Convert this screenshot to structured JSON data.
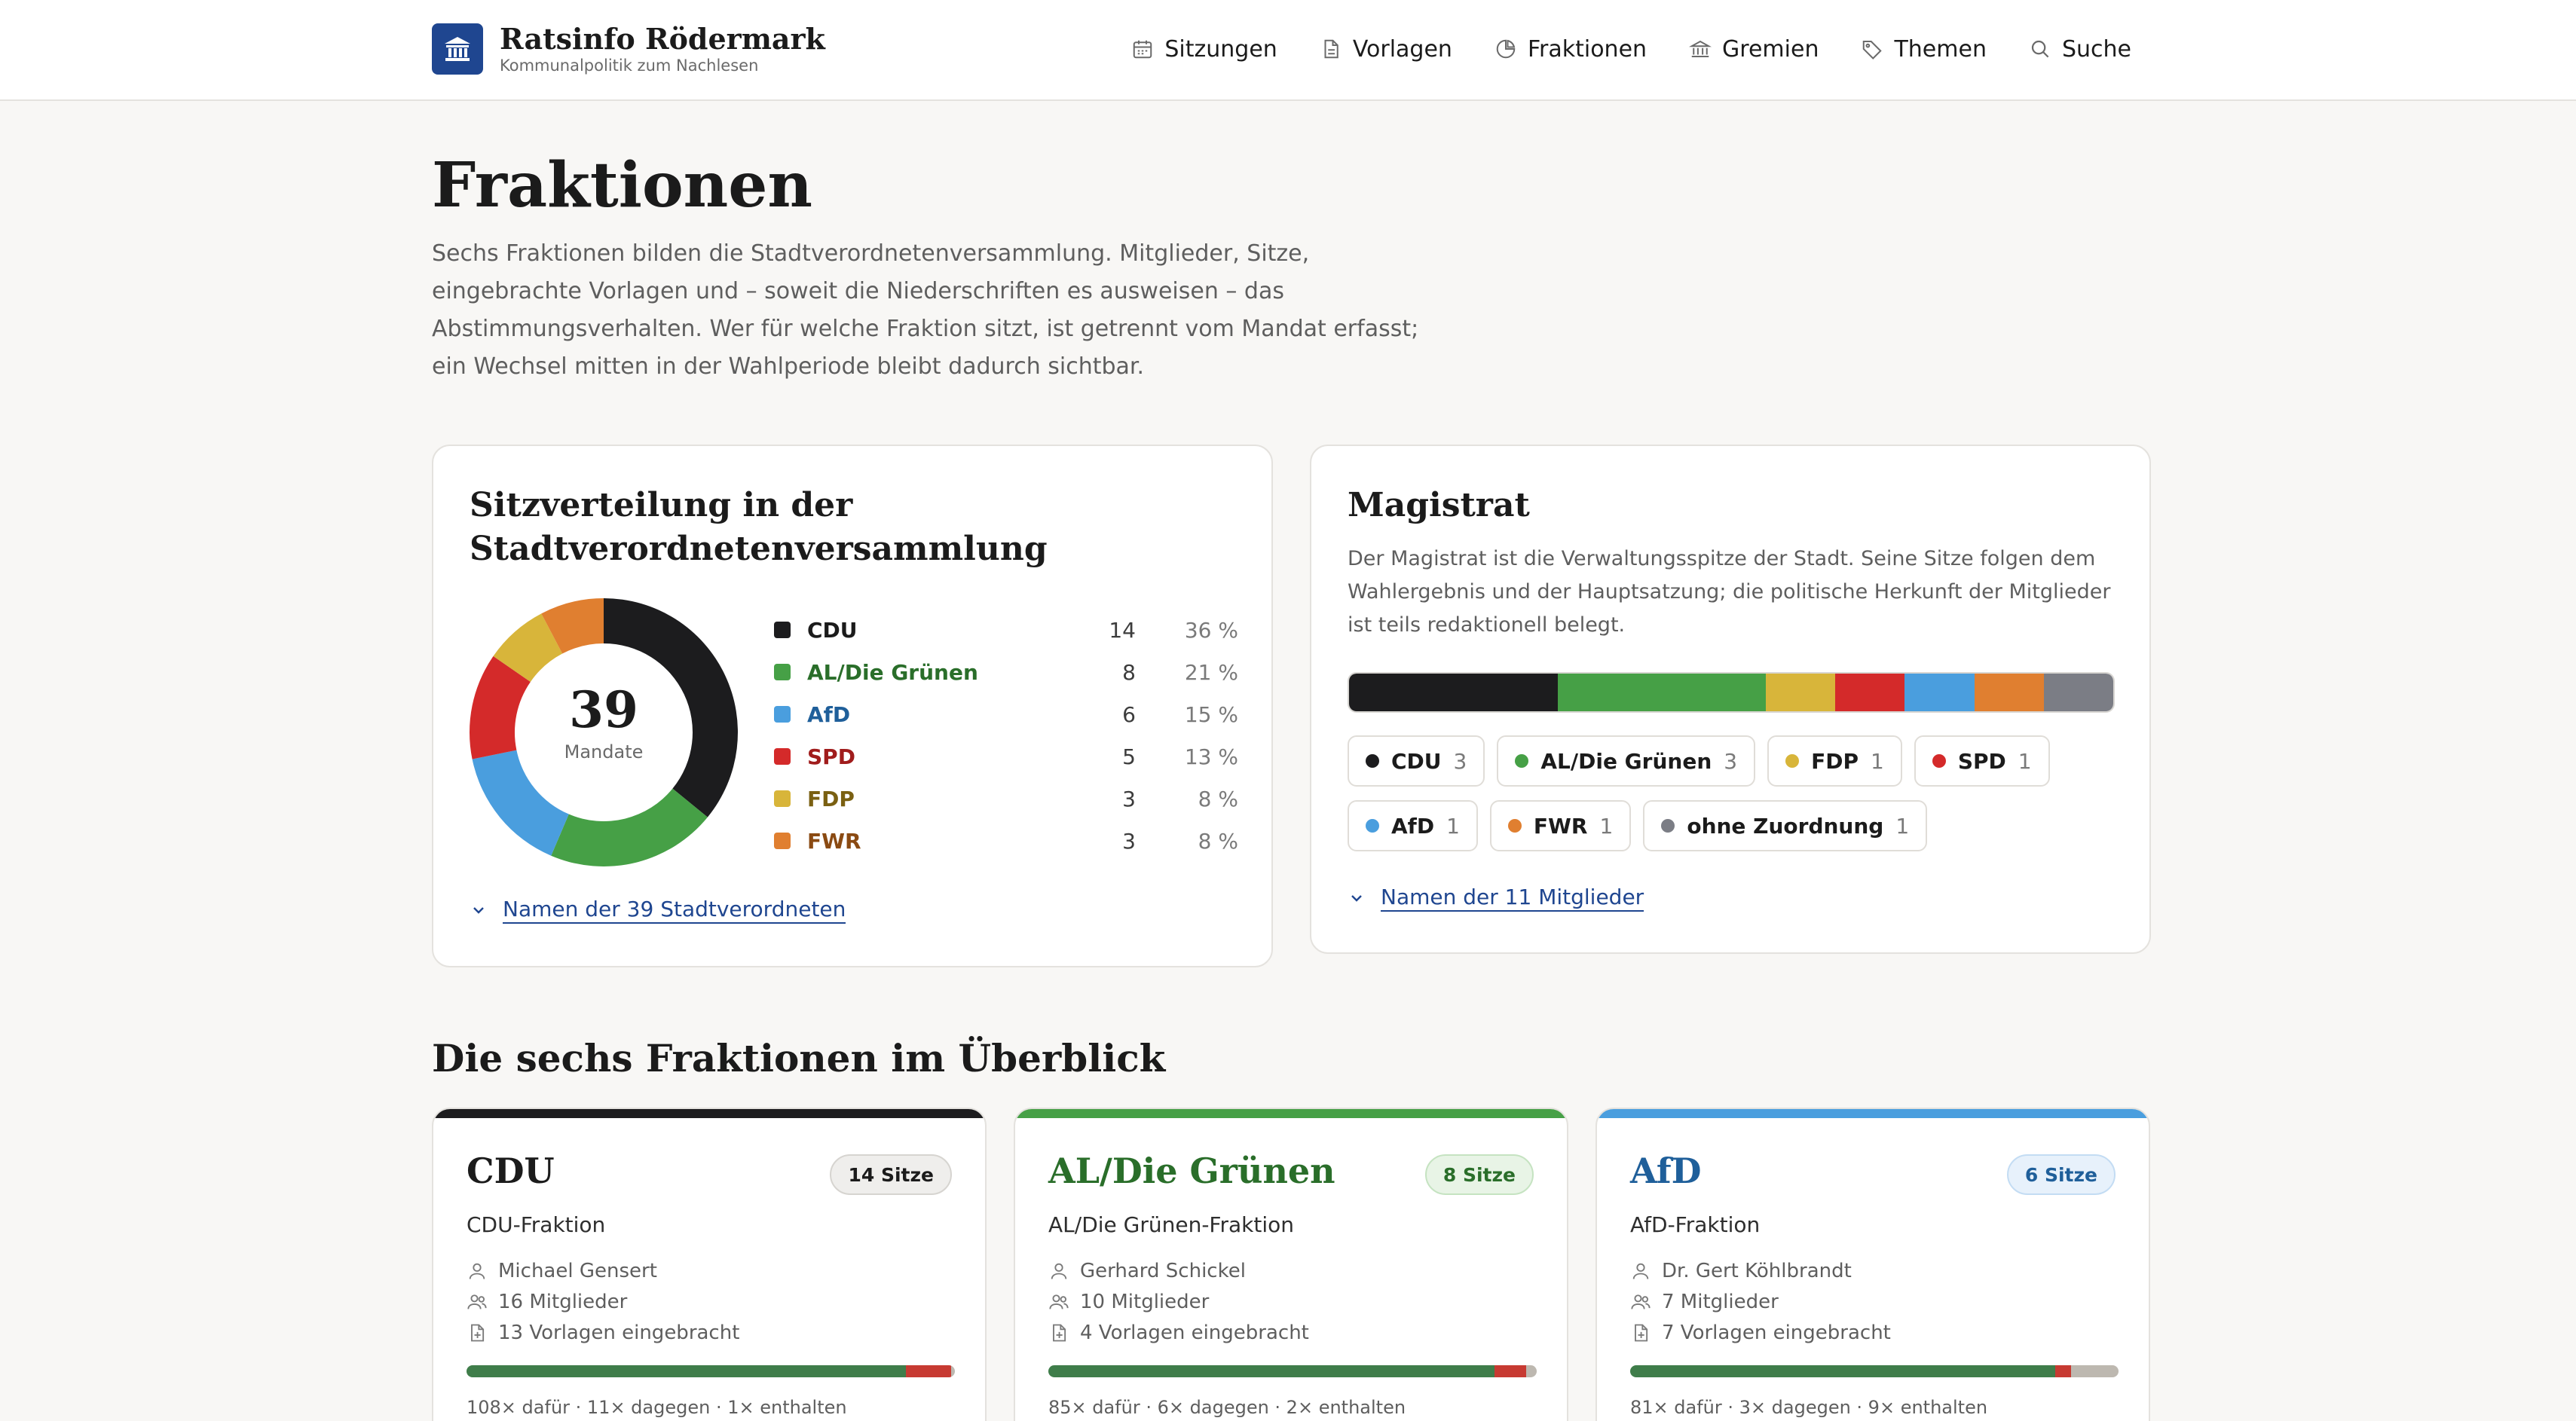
{
  "header": {
    "title": "Ratsinfo Rödermark",
    "subtitle": "Kommunalpolitik zum Nachlesen",
    "nav": [
      {
        "label": "Sitzungen",
        "icon": "calendar-icon"
      },
      {
        "label": "Vorlagen",
        "icon": "document-icon"
      },
      {
        "label": "Fraktionen",
        "icon": "pie-chart-icon"
      },
      {
        "label": "Gremien",
        "icon": "institution-icon"
      },
      {
        "label": "Themen",
        "icon": "tag-icon"
      },
      {
        "label": "Suche",
        "icon": "search-icon"
      }
    ]
  },
  "page": {
    "title": "Fraktionen",
    "intro": "Sechs Fraktionen bilden die Stadtverordnetenversammlung. Mitglieder, Sitze, eingebrachte Vorlagen und – soweit die Niederschriften es ausweisen – das Abstimmungsverhalten. Wer für welche Fraktion sitzt, ist getrennt vom Mandat erfasst; ein Wechsel mitten in der Wahl­periode bleibt dadurch sichtbar."
  },
  "seats": {
    "title": "Sitzverteilung in der Stadtverordnetenversammlung",
    "total": "39",
    "total_label": "Mandate",
    "link": "Namen der 39 Stadtverordneten",
    "parties": [
      {
        "name": "CDU",
        "seats": "14",
        "pct": "36 %",
        "value": 14,
        "color": "#1c1c1e",
        "text_color": "#1b1b1b"
      },
      {
        "name": "AL/Die Grünen",
        "seats": "8",
        "pct": "21 %",
        "value": 8,
        "color": "#46a046",
        "text_color": "#2a6e2a"
      },
      {
        "name": "AfD",
        "seats": "6",
        "pct": "15 %",
        "value": 6,
        "color": "#4a9ede",
        "text_color": "#1f5f9a"
      },
      {
        "name": "SPD",
        "seats": "5",
        "pct": "13 %",
        "value": 5,
        "color": "#d42a2a",
        "text_color": "#a01c1c"
      },
      {
        "name": "FDP",
        "seats": "3",
        "pct": "8 %",
        "value": 3,
        "color": "#d8b53a",
        "text_color": "#7a6012"
      },
      {
        "name": "FWR",
        "seats": "3",
        "pct": "8 %",
        "value": 3,
        "color": "#e07f30",
        "text_color": "#8a4a12"
      }
    ]
  },
  "magistrat": {
    "title": "Magistrat",
    "description": "Der Magistrat ist die Verwaltungsspitze der Stadt. Seine Sitze folgen dem Wahler­gebnis und der Hauptsatzung; die politische Herkunft der Mitglieder ist teils re­daktionell belegt.",
    "link": "Namen der 11 Mitglieder",
    "members": [
      {
        "name": "CDU",
        "count": "3",
        "value": 3,
        "color": "#1c1c1e"
      },
      {
        "name": "AL/Die Grünen",
        "count": "3",
        "value": 3,
        "color": "#46a046"
      },
      {
        "name": "FDP",
        "count": "1",
        "value": 1,
        "color": "#d8b53a"
      },
      {
        "name": "SPD",
        "count": "1",
        "value": 1,
        "color": "#d42a2a"
      },
      {
        "name": "AfD",
        "count": "1",
        "value": 1,
        "color": "#4a9ede"
      },
      {
        "name": "FWR",
        "count": "1",
        "value": 1,
        "color": "#e07f30"
      },
      {
        "name": "ohne Zuordnung",
        "count": "1",
        "value": 1,
        "color": "#7b7d85"
      }
    ]
  },
  "overview": {
    "title": "Die sechs Fraktionen im Überblick",
    "cards": [
      {
        "name": "CDU",
        "badge": "14 Sitze",
        "full_name": "CDU-Fraktion",
        "leader": "Michael Gensert",
        "members": "16 Mitglieder",
        "proposals": "13 Vorlagen eingebracht",
        "votes_text": "108× dafür · 11× dagegen · 1× enthalten",
        "votes": {
          "yes": 108,
          "no": 11,
          "abstain": 1
        },
        "accent": "#1c1c1e",
        "name_color": "#1b1b1b",
        "badge_bg": "#efeeec",
        "badge_border": "#d6d4d0",
        "badge_color": "#1b1b1b"
      },
      {
        "name": "AL/Die Grünen",
        "badge": "8 Sitze",
        "full_name": "AL/Die Grünen-Fraktion",
        "leader": "Gerhard Schickel",
        "members": "10 Mitglieder",
        "proposals": "4 Vorlagen eingebracht",
        "votes_text": "85× dafür · 6× dagegen · 2× enthalten",
        "votes": {
          "yes": 85,
          "no": 6,
          "abstain": 2
        },
        "accent": "#46a046",
        "name_color": "#2a6e2a",
        "badge_bg": "#e8f4e6",
        "badge_border": "#c5e3c1",
        "badge_color": "#2a6e2a"
      },
      {
        "name": "AfD",
        "badge": "6 Sitze",
        "full_name": "AfD-Fraktion",
        "leader": "Dr. Gert Köhlbrandt",
        "members": "7 Mitglieder",
        "proposals": "7 Vorlagen eingebracht",
        "votes_text": "81× dafür · 3× dagegen · 9× enthalten",
        "votes": {
          "yes": 81,
          "no": 3,
          "abstain": 9
        },
        "accent": "#4a9ede",
        "name_color": "#1f5f9a",
        "badge_bg": "#e7f1fb",
        "badge_border": "#c3dcf3",
        "badge_color": "#1f5f9a"
      }
    ]
  },
  "colors": {
    "vote_yes": "#3f7d4a",
    "vote_no": "#c73a32",
    "vote_abstain": "#bdb8b0"
  }
}
